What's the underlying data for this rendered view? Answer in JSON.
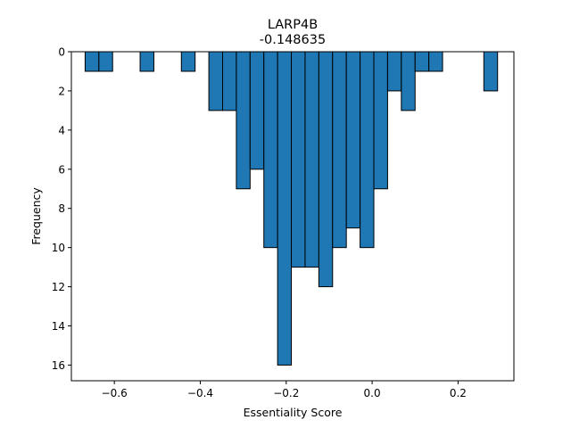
{
  "chart_data": {
    "type": "bar",
    "subtype": "histogram",
    "title": "LARP4B",
    "subtitle": "-0.148635",
    "xlabel": "Essentiality Score",
    "ylabel": "Frequency",
    "y_inverted": true,
    "xlim": [
      -0.7,
      0.33
    ],
    "ylim": [
      0,
      16.8
    ],
    "x_ticks": [
      -0.6,
      -0.4,
      -0.2,
      0.0,
      0.2
    ],
    "x_tick_labels": [
      "−0.6",
      "−0.4",
      "−0.2",
      "0.0",
      "0.2"
    ],
    "y_ticks": [
      0,
      2,
      4,
      6,
      8,
      10,
      12,
      14,
      16
    ],
    "y_tick_labels": [
      "0",
      "2",
      "4",
      "6",
      "8",
      "10",
      "12",
      "14",
      "16"
    ],
    "bar_color": "#1f77b4",
    "edge_color": "#000000",
    "bins": [
      {
        "x0": -0.668,
        "x1": -0.636,
        "count": 1
      },
      {
        "x0": -0.636,
        "x1": -0.604,
        "count": 1
      },
      {
        "x0": -0.54,
        "x1": -0.508,
        "count": 1
      },
      {
        "x0": -0.444,
        "x1": -0.412,
        "count": 1
      },
      {
        "x0": -0.38,
        "x1": -0.348,
        "count": 3
      },
      {
        "x0": -0.348,
        "x1": -0.316,
        "count": 3
      },
      {
        "x0": -0.316,
        "x1": -0.284,
        "count": 7
      },
      {
        "x0": -0.284,
        "x1": -0.252,
        "count": 6
      },
      {
        "x0": -0.252,
        "x1": -0.22,
        "count": 10
      },
      {
        "x0": -0.22,
        "x1": -0.188,
        "count": 16
      },
      {
        "x0": -0.188,
        "x1": -0.156,
        "count": 11
      },
      {
        "x0": -0.156,
        "x1": -0.124,
        "count": 11
      },
      {
        "x0": -0.124,
        "x1": -0.092,
        "count": 12
      },
      {
        "x0": -0.092,
        "x1": -0.06,
        "count": 10
      },
      {
        "x0": -0.06,
        "x1": -0.028,
        "count": 9
      },
      {
        "x0": -0.028,
        "x1": 0.004,
        "count": 10
      },
      {
        "x0": 0.004,
        "x1": 0.036,
        "count": 7
      },
      {
        "x0": 0.036,
        "x1": 0.068,
        "count": 2
      },
      {
        "x0": 0.068,
        "x1": 0.1,
        "count": 3
      },
      {
        "x0": 0.1,
        "x1": 0.132,
        "count": 1
      },
      {
        "x0": 0.132,
        "x1": 0.164,
        "count": 1
      },
      {
        "x0": 0.26,
        "x1": 0.292,
        "count": 2
      }
    ]
  }
}
